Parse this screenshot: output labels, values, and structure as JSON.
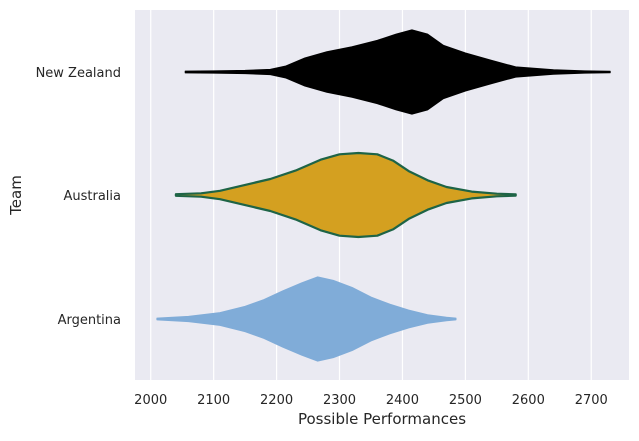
{
  "chart_data": {
    "type": "violin",
    "orientation": "horizontal",
    "xlabel": "Possible Performances",
    "ylabel": "Team",
    "xlim": [
      1975,
      2760
    ],
    "xticks": [
      2000,
      2100,
      2200,
      2300,
      2400,
      2500,
      2600,
      2700
    ],
    "grid": true,
    "categories": [
      "New Zealand",
      "Australia",
      "Argentina"
    ],
    "series": [
      {
        "name": "New Zealand",
        "color": "#000000",
        "edge_color": "#000000",
        "min": 2055,
        "max": 2730,
        "density": [
          [
            2055,
            0.02
          ],
          [
            2100,
            0.025
          ],
          [
            2150,
            0.035
          ],
          [
            2190,
            0.06
          ],
          [
            2215,
            0.14
          ],
          [
            2245,
            0.33
          ],
          [
            2280,
            0.48
          ],
          [
            2320,
            0.6
          ],
          [
            2360,
            0.75
          ],
          [
            2390,
            0.9
          ],
          [
            2415,
            1.0
          ],
          [
            2440,
            0.9
          ],
          [
            2465,
            0.63
          ],
          [
            2500,
            0.45
          ],
          [
            2540,
            0.28
          ],
          [
            2580,
            0.12
          ],
          [
            2640,
            0.05
          ],
          [
            2690,
            0.025
          ],
          [
            2730,
            0.015
          ]
        ]
      },
      {
        "name": "Australia",
        "color": "#D4A020",
        "edge_color": "#1E6446",
        "min": 2040,
        "max": 2580,
        "density": [
          [
            2040,
            0.02
          ],
          [
            2080,
            0.04
          ],
          [
            2110,
            0.1
          ],
          [
            2150,
            0.24
          ],
          [
            2190,
            0.38
          ],
          [
            2230,
            0.58
          ],
          [
            2270,
            0.84
          ],
          [
            2300,
            0.97
          ],
          [
            2330,
            1.0
          ],
          [
            2360,
            0.97
          ],
          [
            2385,
            0.82
          ],
          [
            2410,
            0.57
          ],
          [
            2440,
            0.35
          ],
          [
            2470,
            0.19
          ],
          [
            2510,
            0.08
          ],
          [
            2550,
            0.03
          ],
          [
            2580,
            0.015
          ]
        ]
      },
      {
        "name": "Argentina",
        "color": "#80ACD8",
        "edge_color": "#80ACD8",
        "min": 2010,
        "max": 2485,
        "density": [
          [
            2010,
            0.02
          ],
          [
            2060,
            0.06
          ],
          [
            2110,
            0.15
          ],
          [
            2150,
            0.3
          ],
          [
            2180,
            0.46
          ],
          [
            2210,
            0.67
          ],
          [
            2240,
            0.86
          ],
          [
            2265,
            1.0
          ],
          [
            2290,
            0.92
          ],
          [
            2320,
            0.75
          ],
          [
            2350,
            0.52
          ],
          [
            2380,
            0.35
          ],
          [
            2410,
            0.21
          ],
          [
            2440,
            0.1
          ],
          [
            2470,
            0.04
          ],
          [
            2485,
            0.02
          ]
        ]
      }
    ]
  }
}
